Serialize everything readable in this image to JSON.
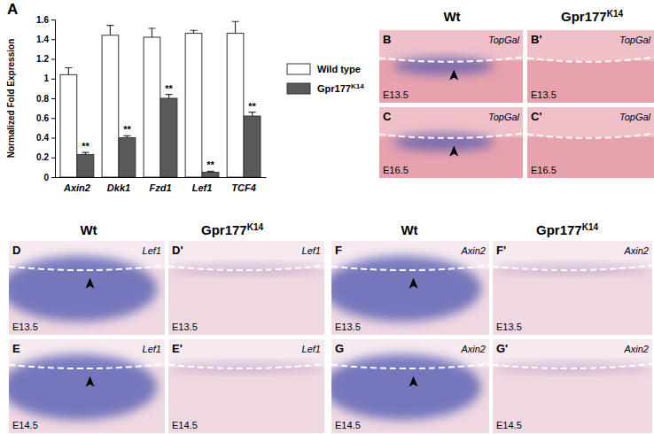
{
  "chart_data": {
    "type": "bar",
    "chart_label": "A",
    "y_label": "Normalized Fold Expression",
    "categories": [
      "Axin2",
      "Dkk1",
      "Fzd1",
      "Lef1",
      "TCF4"
    ],
    "series": [
      {
        "name": "Wild type",
        "color": "#ffffff",
        "values": [
          1.04,
          1.44,
          1.42,
          1.46,
          1.46
        ],
        "errors": [
          0.07,
          0.1,
          0.09,
          0.03,
          0.12
        ]
      },
      {
        "name": "Gpr177K14",
        "color": "#595959",
        "values": [
          0.23,
          0.4,
          0.8,
          0.05,
          0.62
        ],
        "errors": [
          0.02,
          0.02,
          0.04,
          0.01,
          0.04
        ],
        "significance": [
          "**",
          "**",
          "**",
          "**",
          "**"
        ]
      }
    ],
    "ylim": [
      0,
      1.6
    ],
    "yticks": [
      0,
      0.2,
      0.4,
      0.6,
      0.8,
      1,
      1.2,
      1.4,
      1.6
    ],
    "legend": "right",
    "grid": false
  },
  "column_headers": [
    "Wt",
    "Gpr177K14",
    "Wt",
    "Gpr177K14",
    "Wt",
    "Gpr177K14"
  ],
  "panels": [
    {
      "label": "B",
      "gene": "TopGal",
      "stage": "E13.5"
    },
    {
      "label": "B'",
      "gene": "TopGal",
      "stage": "E13.5"
    },
    {
      "label": "C",
      "gene": "TopGal",
      "stage": "E16.5"
    },
    {
      "label": "C'",
      "gene": "TopGal",
      "stage": "E16.5"
    },
    {
      "label": "D",
      "gene": "Lef1",
      "stage": "E13.5"
    },
    {
      "label": "D'",
      "gene": "Lef1",
      "stage": "E13.5"
    },
    {
      "label": "E",
      "gene": "Lef1",
      "stage": "E14.5"
    },
    {
      "label": "E'",
      "gene": "Lef1",
      "stage": "E14.5"
    },
    {
      "label": "F",
      "gene": "Axin2",
      "stage": "E13.5"
    },
    {
      "label": "F'",
      "gene": "Axin2",
      "stage": "E13.5"
    },
    {
      "label": "G",
      "gene": "Axin2",
      "stage": "E14.5"
    },
    {
      "label": "G'",
      "gene": "Axin2",
      "stage": "E14.5"
    }
  ]
}
